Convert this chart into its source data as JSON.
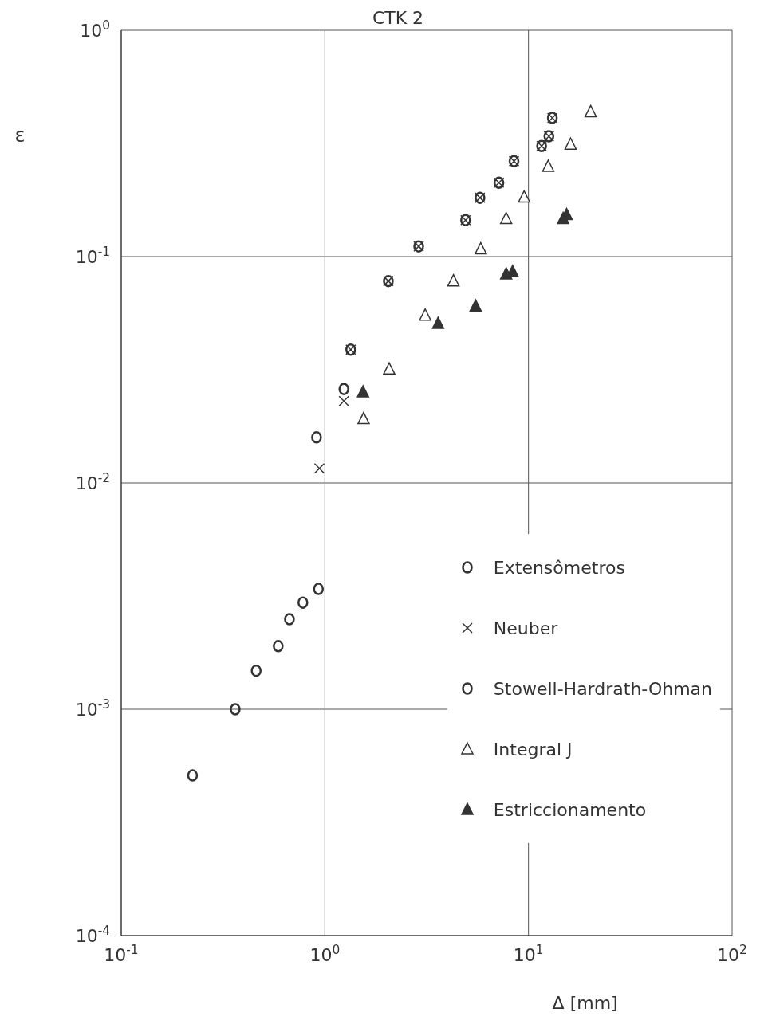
{
  "chart_data": {
    "type": "scatter",
    "title": "CTK 2",
    "xlabel": "Δ [mm]",
    "ylabel": "ε",
    "log": "xy",
    "grid": true,
    "legend": "bottom right",
    "xlim": [
      0.1,
      100
    ],
    "xticks": [
      {
        "value": 0.1,
        "label": "10$^{-1}$"
      },
      {
        "value": 1,
        "label": "10$^{0}$"
      },
      {
        "value": 10,
        "label": "10$^{1}$"
      },
      {
        "value": 100,
        "label": "10$^{2}$"
      }
    ],
    "ylim": [
      0.0001,
      1
    ],
    "yticks": [
      {
        "value": 0.0001,
        "label": "10$^{-4}$"
      },
      {
        "value": 0.001,
        "label": "10$^{-3}$"
      },
      {
        "value": 0.01,
        "label": "10$^{-2}$"
      },
      {
        "value": 0.1,
        "label": "10$^{-1}$"
      },
      {
        "value": 1,
        "label": "10$^{0}$"
      }
    ],
    "series": [
      {
        "name": "Extensômetros",
        "color": "#333333",
        "marker": "circle",
        "x": [
          0.224,
          0.363,
          0.46,
          0.59,
          0.67,
          0.78,
          0.93
        ],
        "values": [
          0.00051,
          0.001,
          0.00148,
          0.0019,
          0.0025,
          0.00296,
          0.0034
        ]
      },
      {
        "name": "Neuber",
        "color": "#333333",
        "marker": "cross",
        "x": [
          0.94,
          1.24,
          1.34,
          2.05,
          2.89,
          4.91,
          5.78,
          7.16,
          8.49,
          11.6,
          12.6,
          13.1
        ],
        "values": [
          0.0116,
          0.023,
          0.0388,
          0.078,
          0.111,
          0.145,
          0.182,
          0.212,
          0.264,
          0.308,
          0.34,
          0.41
        ]
      },
      {
        "name": "Stowell-Hardrath-Ohman",
        "color": "#333333",
        "marker": "circle",
        "x": [
          0.91,
          1.24,
          1.34,
          2.05,
          2.89,
          4.91,
          5.78,
          7.16,
          8.49,
          11.6,
          12.6,
          13.1
        ],
        "values": [
          0.0159,
          0.026,
          0.0388,
          0.078,
          0.111,
          0.145,
          0.182,
          0.212,
          0.264,
          0.308,
          0.34,
          0.41
        ]
      },
      {
        "name": "Integral J",
        "color": "#ffffff",
        "marker": "triangle",
        "x": [
          1.55,
          2.07,
          3.11,
          4.28,
          5.83,
          7.77,
          9.52,
          12.5,
          16.1,
          20.2
        ],
        "values": [
          0.0192,
          0.0318,
          0.055,
          0.078,
          0.108,
          0.147,
          0.183,
          0.25,
          0.313,
          0.436
        ]
      },
      {
        "name": "Estriccionamento",
        "color": "#333333",
        "marker": "triangle",
        "x": [
          1.54,
          3.6,
          5.5,
          7.77,
          8.36,
          14.8,
          15.4
        ],
        "values": [
          0.0252,
          0.0506,
          0.0604,
          0.0837,
          0.0857,
          0.147,
          0.153
        ]
      }
    ]
  }
}
